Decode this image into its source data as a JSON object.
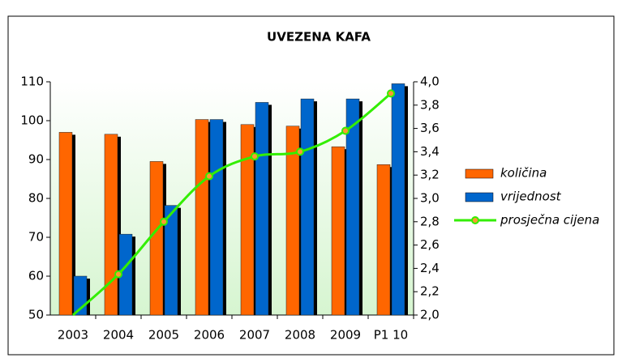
{
  "chart_data": {
    "type": "bar_line",
    "title": "UVEZENA KAFA",
    "categories": [
      "2003",
      "2004",
      "2005",
      "2006",
      "2007",
      "2008",
      "2009",
      "P1 10"
    ],
    "series": [
      {
        "name": "količina",
        "color": "#ff6600",
        "values": [
          97,
          96.5,
          89.5,
          100.3,
          99,
          98.6,
          93.3,
          88.7
        ]
      },
      {
        "name": "vrijednost",
        "color": "#0066cc",
        "values": [
          60,
          70.8,
          78.2,
          100.3,
          104.7,
          105.6,
          105.6,
          109.5
        ]
      },
      {
        "name": "prosječna cijena",
        "color": "#33ee00",
        "axis": "y2",
        "values": [
          2.0,
          2.35,
          2.8,
          3.19,
          3.36,
          3.4,
          3.58,
          3.9
        ]
      }
    ],
    "ylim": [
      50,
      110
    ],
    "yticks": [
      50,
      60,
      70,
      80,
      90,
      100,
      110
    ],
    "y2lim": [
      2.0,
      4.0
    ],
    "y2ticks": [
      {
        "value": 2.0,
        "label": "2,0"
      },
      {
        "value": 2.2,
        "label": "2,2"
      },
      {
        "value": 2.4,
        "label": "2,4"
      },
      {
        "value": 2.6,
        "label": "2,6"
      },
      {
        "value": 2.8,
        "label": "2,8"
      },
      {
        "value": 3.0,
        "label": "3,0"
      },
      {
        "value": 3.2,
        "label": "3,2"
      },
      {
        "value": 3.4,
        "label": "3,4"
      },
      {
        "value": 3.6,
        "label": "3,6"
      },
      {
        "value": 3.8,
        "label": "3,8"
      },
      {
        "value": 4.0,
        "label": "4,0"
      }
    ],
    "legend": "right"
  }
}
